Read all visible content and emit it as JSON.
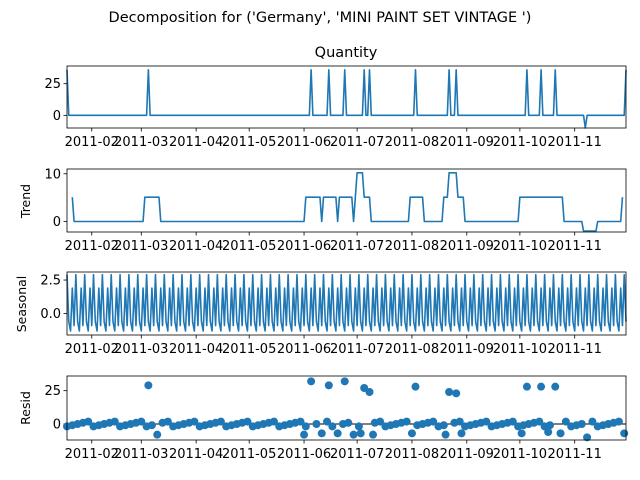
{
  "chart_data": {
    "type": "line",
    "suptitle": "Decomposition for ('Germany', 'MINI PAINT SET VINTAGE ')",
    "x_start": "2011-01-18",
    "x_end": "2011-11-30",
    "xtick_labels": [
      "2011-02",
      "2011-03",
      "2011-04",
      "2011-05",
      "2011-06",
      "2011-07",
      "2011-08",
      "2011-09",
      "2011-10",
      "2011-11"
    ],
    "xtick_dates": [
      "2011-02-01",
      "2011-03-01",
      "2011-04-01",
      "2011-05-01",
      "2011-06-01",
      "2011-07-01",
      "2011-08-01",
      "2011-09-01",
      "2011-10-01",
      "2011-11-01"
    ],
    "line_color": "#1f77b4",
    "panels": [
      {
        "id": "observed",
        "title": "Quantity",
        "ylabel": "",
        "ylim": [
          -10,
          39
        ],
        "yticks": [
          0,
          25
        ],
        "style": "line",
        "events": [
          {
            "date": "2011-01-18",
            "value": 36
          },
          {
            "date": "2011-03-05",
            "value": 36
          },
          {
            "date": "2011-06-05",
            "value": 36
          },
          {
            "date": "2011-06-15",
            "value": 36
          },
          {
            "date": "2011-06-24",
            "value": 36
          },
          {
            "date": "2011-07-05",
            "value": 36
          },
          {
            "date": "2011-07-08",
            "value": 36
          },
          {
            "date": "2011-08-03",
            "value": 36
          },
          {
            "date": "2011-08-22",
            "value": 36
          },
          {
            "date": "2011-08-26",
            "value": 36
          },
          {
            "date": "2011-10-05",
            "value": 36
          },
          {
            "date": "2011-10-13",
            "value": 36
          },
          {
            "date": "2011-10-21",
            "value": 36
          },
          {
            "date": "2011-11-07",
            "value": -10
          },
          {
            "date": "2011-11-30",
            "value": 36
          }
        ]
      },
      {
        "id": "trend",
        "title": "",
        "ylabel": "Trend",
        "ylim": [
          -2.2,
          11
        ],
        "yticks": [
          0,
          10
        ],
        "style": "line",
        "values": [
          [
            "2011-01-21",
            5.1
          ],
          [
            "2011-01-22",
            0
          ],
          [
            "2011-03-02",
            0
          ],
          [
            "2011-03-03",
            5.1
          ],
          [
            "2011-03-11",
            5.1
          ],
          [
            "2011-03-12",
            0
          ],
          [
            "2011-06-01",
            0
          ],
          [
            "2011-06-02",
            5.1
          ],
          [
            "2011-06-10",
            5.1
          ],
          [
            "2011-06-11",
            0
          ],
          [
            "2011-06-12",
            5.1
          ],
          [
            "2011-06-19",
            5.1
          ],
          [
            "2011-06-20",
            0
          ],
          [
            "2011-06-21",
            5.1
          ],
          [
            "2011-06-28",
            5.1
          ],
          [
            "2011-06-29",
            0
          ],
          [
            "2011-06-30",
            5.1
          ],
          [
            "2011-07-01",
            10.2
          ],
          [
            "2011-07-04",
            10.2
          ],
          [
            "2011-07-05",
            5.1
          ],
          [
            "2011-07-08",
            5.1
          ],
          [
            "2011-07-09",
            0
          ],
          [
            "2011-07-30",
            0
          ],
          [
            "2011-07-31",
            5.1
          ],
          [
            "2011-08-07",
            5.1
          ],
          [
            "2011-08-08",
            0
          ],
          [
            "2011-08-18",
            0
          ],
          [
            "2011-08-19",
            5.1
          ],
          [
            "2011-08-21",
            5.1
          ],
          [
            "2011-08-22",
            10.2
          ],
          [
            "2011-08-26",
            10.2
          ],
          [
            "2011-08-27",
            5.1
          ],
          [
            "2011-08-30",
            5.1
          ],
          [
            "2011-08-31",
            0
          ],
          [
            "2011-09-30",
            0
          ],
          [
            "2011-10-01",
            5.1
          ],
          [
            "2011-10-25",
            5.1
          ],
          [
            "2011-10-26",
            0
          ],
          [
            "2011-11-05",
            0
          ],
          [
            "2011-11-06",
            -2.0
          ],
          [
            "2011-11-13",
            -2.0
          ],
          [
            "2011-11-14",
            0
          ],
          [
            "2011-11-27",
            0
          ],
          [
            "2011-11-28",
            5.1
          ]
        ]
      },
      {
        "id": "seasonal",
        "title": "",
        "ylabel": "Seasonal",
        "ylim": [
          -1.6,
          3.1
        ],
        "yticks": [
          0.0,
          2.5
        ],
        "yticklabels": [
          "0.0",
          "2.5"
        ],
        "style": "line",
        "period_days": 5,
        "pattern": [
          2.9,
          -0.6,
          -1.3,
          1.9,
          -0.9
        ]
      },
      {
        "id": "resid",
        "title": "",
        "ylabel": "Resid",
        "ylim": [
          -12,
          36
        ],
        "yticks": [
          0,
          25
        ],
        "style": "scatter",
        "zero_line": true,
        "baseline": 0,
        "outliers": [
          {
            "date": "2011-03-05",
            "value": 29
          },
          {
            "date": "2011-06-05",
            "value": 32
          },
          {
            "date": "2011-06-15",
            "value": 29
          },
          {
            "date": "2011-06-24",
            "value": 32
          },
          {
            "date": "2011-07-05",
            "value": 27
          },
          {
            "date": "2011-07-08",
            "value": 24
          },
          {
            "date": "2011-08-03",
            "value": 28
          },
          {
            "date": "2011-08-22",
            "value": 24
          },
          {
            "date": "2011-08-26",
            "value": 23
          },
          {
            "date": "2011-10-05",
            "value": 28
          },
          {
            "date": "2011-10-13",
            "value": 28
          },
          {
            "date": "2011-10-21",
            "value": 28
          }
        ],
        "low_points": [
          {
            "date": "2011-03-10",
            "value": -8
          },
          {
            "date": "2011-06-01",
            "value": -8
          },
          {
            "date": "2011-06-11",
            "value": -7
          },
          {
            "date": "2011-06-20",
            "value": -7
          },
          {
            "date": "2011-06-29",
            "value": -8
          },
          {
            "date": "2011-07-03",
            "value": -7
          },
          {
            "date": "2011-07-10",
            "value": -8
          },
          {
            "date": "2011-08-01",
            "value": -7
          },
          {
            "date": "2011-08-20",
            "value": -8
          },
          {
            "date": "2011-08-29",
            "value": -7
          },
          {
            "date": "2011-10-02",
            "value": -7
          },
          {
            "date": "2011-10-17",
            "value": -6
          },
          {
            "date": "2011-10-24",
            "value": -7
          },
          {
            "date": "2011-11-08",
            "value": -10
          },
          {
            "date": "2011-11-29",
            "value": -7
          }
        ]
      }
    ]
  }
}
